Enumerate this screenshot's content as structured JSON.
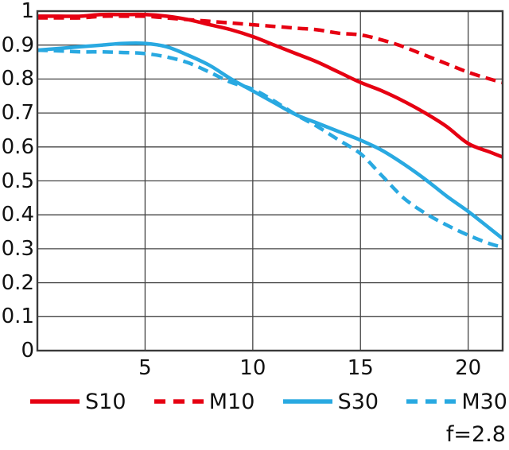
{
  "chart_data": {
    "type": "line",
    "title": "",
    "xlabel": "",
    "ylabel": "",
    "xlim": [
      0,
      21.6
    ],
    "ylim": [
      0,
      1
    ],
    "grid": true,
    "legend_position": "bottom",
    "annotation": "f=2.8",
    "xtick_values": [
      5,
      10,
      15,
      20
    ],
    "xtick_labels": [
      "5",
      "10",
      "15",
      "20"
    ],
    "ytick_values": [
      0,
      0.1,
      0.2,
      0.3,
      0.4,
      0.5,
      0.6,
      0.7,
      0.8,
      0.9,
      1
    ],
    "ytick_labels": [
      "0",
      "0.1",
      "0.2",
      "0.3",
      "0.4",
      "0.5",
      "0.6",
      "0.7",
      "0.8",
      "0.9",
      "1"
    ],
    "x": [
      0,
      1,
      2,
      3,
      4,
      5,
      6,
      7,
      8,
      9,
      10,
      11,
      12,
      13,
      14,
      15,
      16,
      17,
      18,
      19,
      20,
      21,
      21.6
    ],
    "series": [
      {
        "name": "S10",
        "color": "#e60012",
        "dash": "solid",
        "values": [
          0.985,
          0.985,
          0.985,
          0.99,
          0.99,
          0.99,
          0.985,
          0.975,
          0.96,
          0.945,
          0.925,
          0.9,
          0.875,
          0.85,
          0.82,
          0.79,
          0.765,
          0.735,
          0.7,
          0.66,
          0.61,
          0.585,
          0.57
        ]
      },
      {
        "name": "M10",
        "color": "#e60012",
        "dash": "dashed",
        "values": [
          0.98,
          0.98,
          0.98,
          0.985,
          0.985,
          0.985,
          0.98,
          0.975,
          0.97,
          0.965,
          0.96,
          0.955,
          0.95,
          0.945,
          0.935,
          0.93,
          0.915,
          0.895,
          0.87,
          0.845,
          0.82,
          0.8,
          0.79
        ]
      },
      {
        "name": "S30",
        "color": "#29a9e1",
        "dash": "solid",
        "values": [
          0.885,
          0.89,
          0.895,
          0.9,
          0.905,
          0.905,
          0.895,
          0.87,
          0.84,
          0.8,
          0.765,
          0.73,
          0.695,
          0.67,
          0.645,
          0.62,
          0.59,
          0.55,
          0.505,
          0.455,
          0.41,
          0.36,
          0.33
        ]
      },
      {
        "name": "M30",
        "color": "#29a9e1",
        "dash": "dashed",
        "values": [
          0.885,
          0.883,
          0.88,
          0.88,
          0.878,
          0.875,
          0.865,
          0.848,
          0.82,
          0.79,
          0.77,
          0.735,
          0.695,
          0.66,
          0.62,
          0.58,
          0.515,
          0.45,
          0.405,
          0.37,
          0.34,
          0.315,
          0.305
        ]
      }
    ],
    "style": {
      "grid_color": "#454545",
      "border_color": "#3a3a3a",
      "background": "#ffffff",
      "text_color": "#111111"
    }
  }
}
